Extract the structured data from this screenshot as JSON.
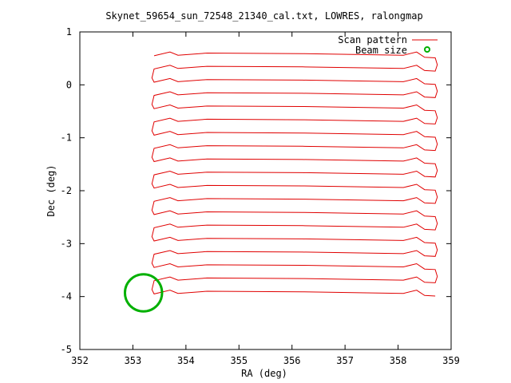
{
  "chart_data": {
    "type": "line",
    "title": "Skynet_59654_sun_72548_21340_cal.txt, LOWRES, ralongmap",
    "xlabel": "RA (deg)",
    "ylabel": "Dec (deg)",
    "xlim": [
      352,
      359
    ],
    "ylim": [
      -5,
      1
    ],
    "xticks": [
      "352",
      "353",
      "354",
      "355",
      "356",
      "357",
      "358",
      "359"
    ],
    "yticks": [
      "-5",
      "-4",
      "-3",
      "-2",
      "-1",
      "0",
      "1"
    ],
    "grid": false,
    "legend_position": "top-right",
    "series": [
      {
        "name": "Scan pattern",
        "color": "#e00000",
        "scan_rows_dec": [
          0.5,
          0.25,
          0.0,
          -0.25,
          -0.5,
          -0.75,
          -1.0,
          -1.25,
          -1.5,
          -1.75,
          -2.0,
          -2.25,
          -2.5,
          -2.75,
          -3.0,
          -3.25,
          -3.5,
          -3.75,
          -4.0
        ],
        "ra_start": 353.4,
        "ra_end": 358.7
      },
      {
        "name": "Beam size",
        "color": "#00b000",
        "center": [
          353.2,
          -3.93
        ],
        "radius_deg": 0.35
      }
    ]
  }
}
